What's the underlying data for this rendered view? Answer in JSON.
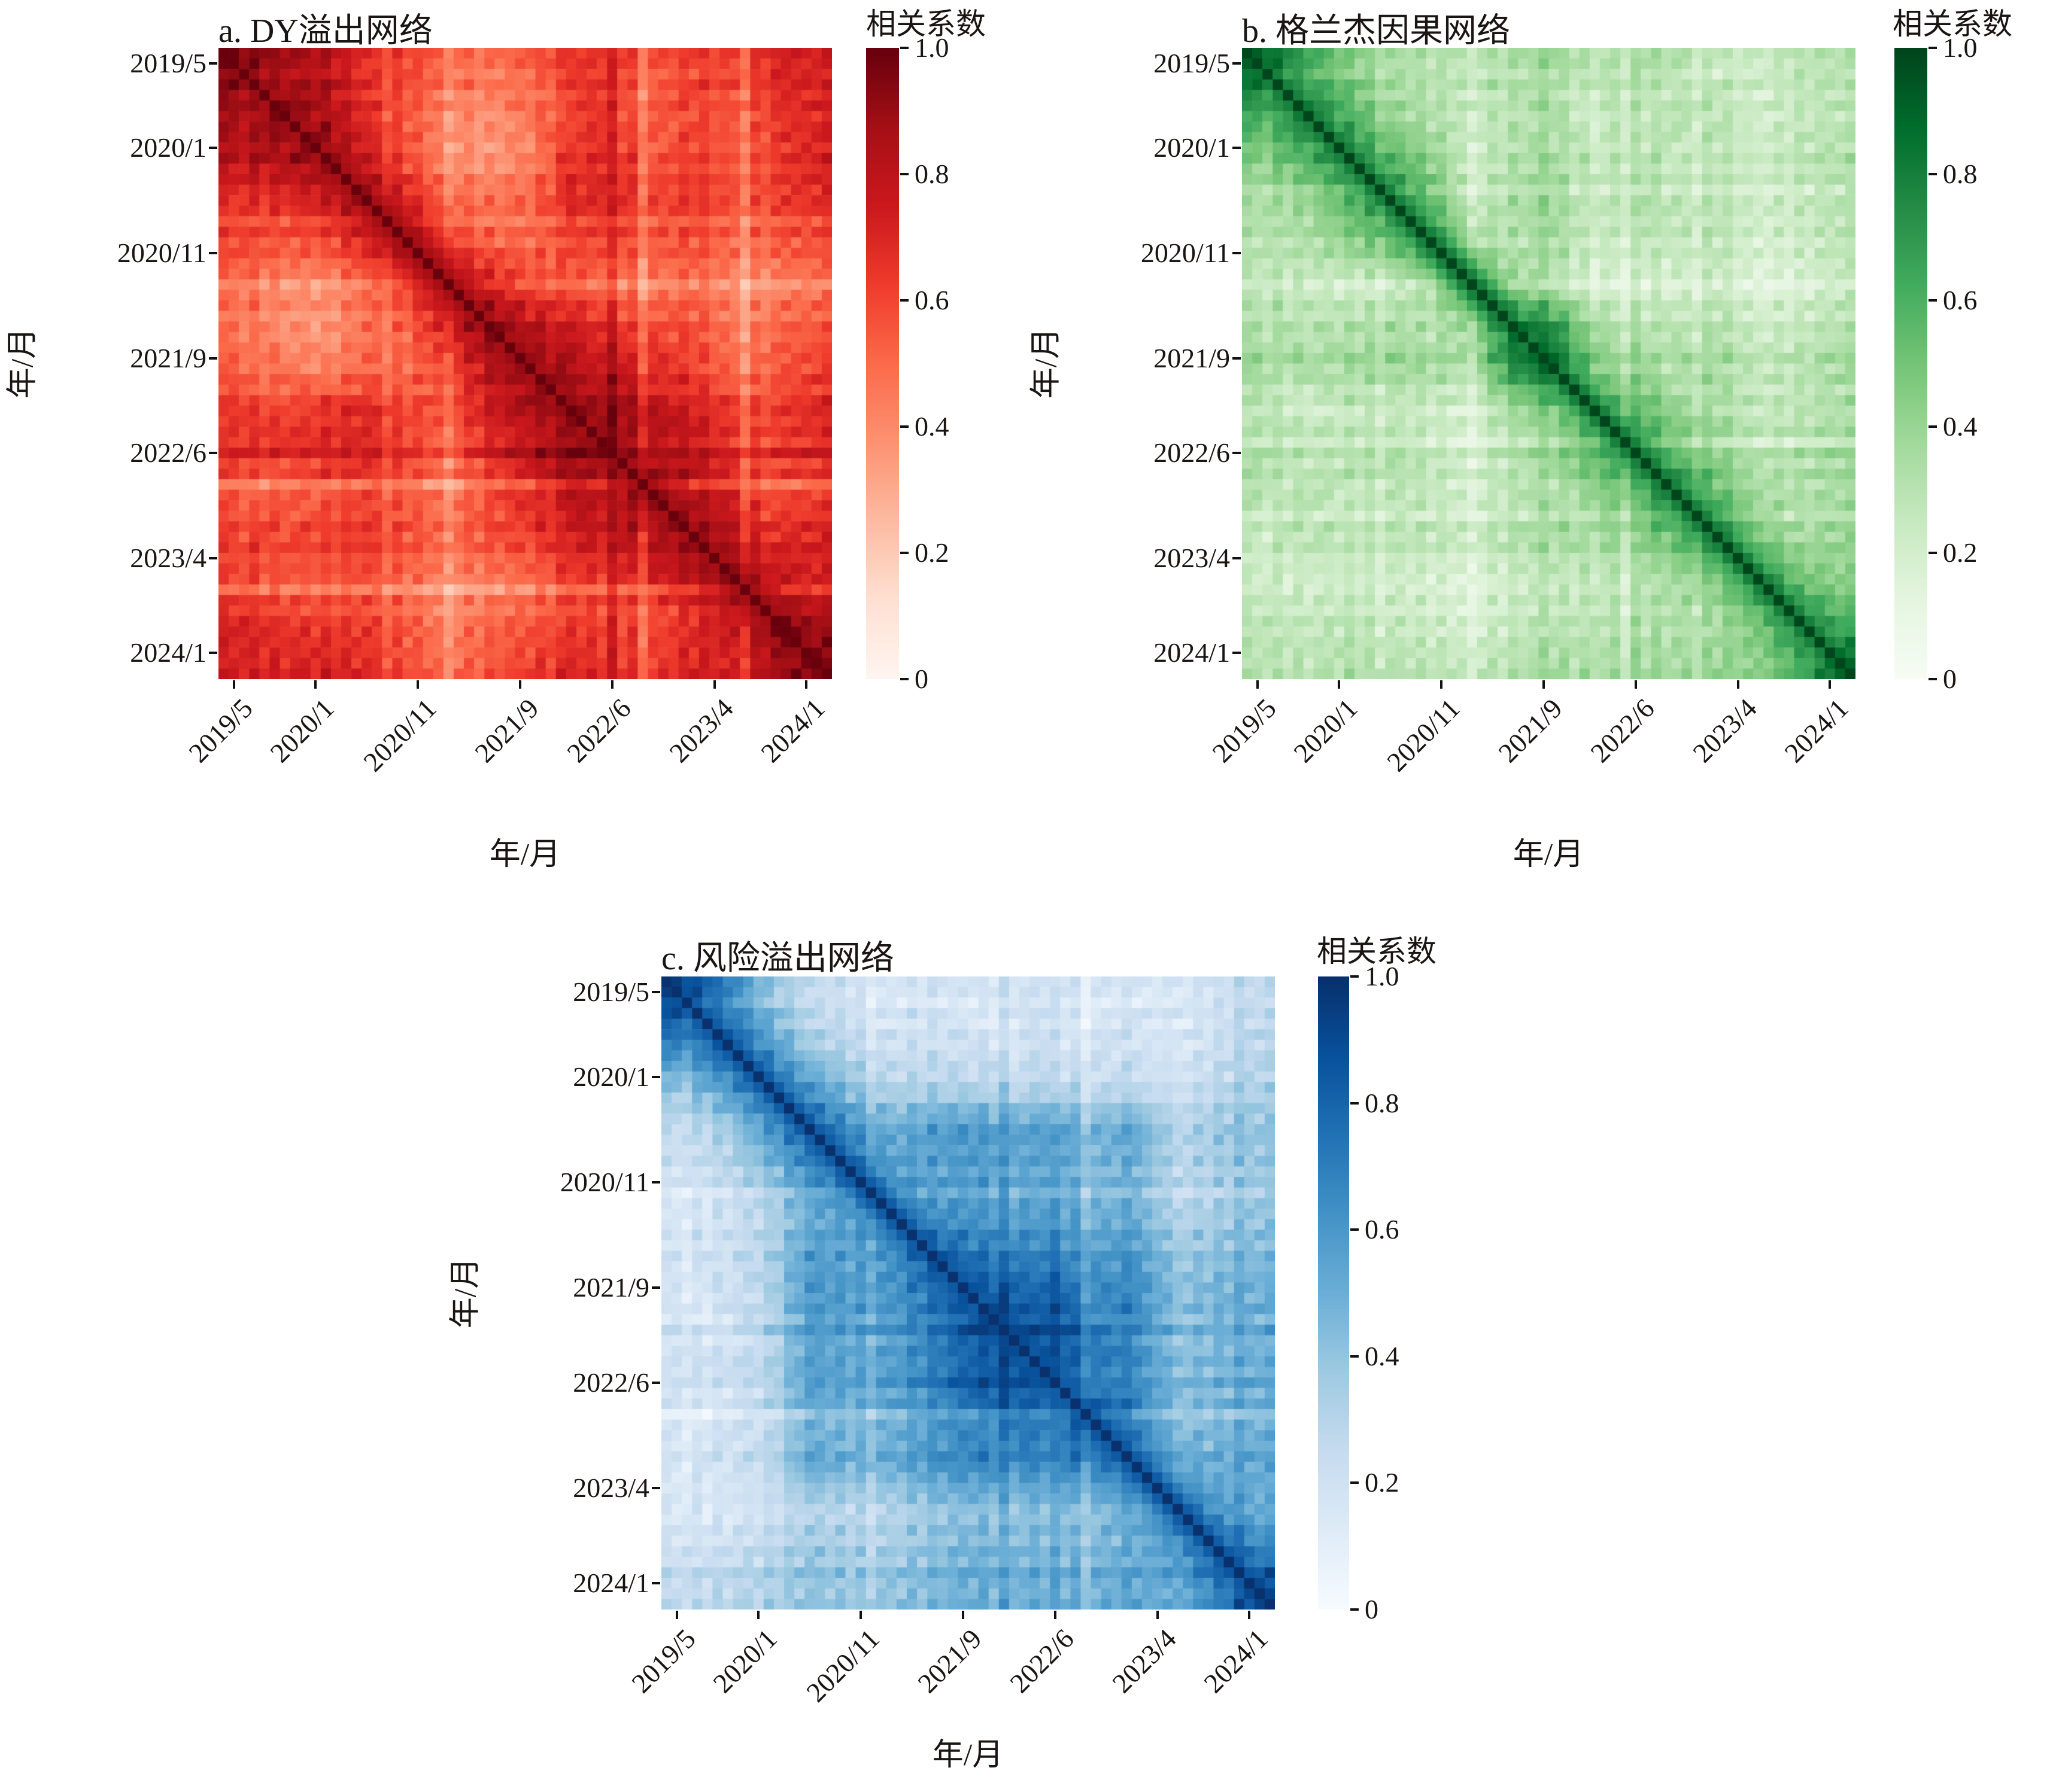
{
  "figure": {
    "background": "#ffffff",
    "text_color": "#1a1412",
    "colorbar_title": "相关系数",
    "colorbar_tick_labels": [
      "1.0",
      "0.8",
      "0.6",
      "0.4",
      "0.2",
      "0"
    ],
    "colorbar_tick_values": [
      1.0,
      0.8,
      0.6,
      0.4,
      0.2,
      0
    ],
    "axis_label_x": "年/月",
    "axis_label_y": "年/月",
    "tick_labels": [
      "2019/5",
      "2020/1",
      "2020/11",
      "2021/9",
      "2022/6",
      "2023/4",
      "2024/1"
    ],
    "tick_month_indices": [
      1,
      9,
      19,
      29,
      38,
      48,
      57
    ]
  },
  "chart_data": [
    {
      "type": "heatmap",
      "panel": "a",
      "title": "a. DY溢出网络",
      "colormap": "Reds",
      "value_range": [
        0,
        1
      ],
      "months_start": "2019/4",
      "months_count": 60,
      "grid": false,
      "legend_position": "right-colorbar",
      "colormap_stops": [
        "#fff5f0",
        "#fee0d2",
        "#fcbba1",
        "#fc9272",
        "#fb6a4a",
        "#ef3b2c",
        "#cb181d",
        "#a50f15",
        "#67000d"
      ],
      "diag_slope": 0.08,
      "coarse_month_centers": [
        2,
        6,
        10,
        14,
        18,
        22,
        26,
        30,
        34,
        38,
        42,
        46,
        50,
        54,
        58
      ],
      "matrix": [
        [
          0.92,
          0.86,
          0.82,
          0.66,
          0.6,
          0.5,
          0.46,
          0.52,
          0.6,
          0.63,
          0.55,
          0.62,
          0.6,
          0.68,
          0.72
        ],
        [
          0.86,
          0.92,
          0.85,
          0.68,
          0.55,
          0.42,
          0.38,
          0.46,
          0.6,
          0.65,
          0.52,
          0.6,
          0.55,
          0.62,
          0.7
        ],
        [
          0.82,
          0.85,
          0.92,
          0.76,
          0.58,
          0.4,
          0.35,
          0.42,
          0.65,
          0.68,
          0.55,
          0.62,
          0.55,
          0.6,
          0.72
        ],
        [
          0.66,
          0.68,
          0.76,
          0.9,
          0.72,
          0.52,
          0.48,
          0.52,
          0.68,
          0.7,
          0.6,
          0.65,
          0.58,
          0.6,
          0.68
        ],
        [
          0.6,
          0.55,
          0.58,
          0.72,
          0.88,
          0.62,
          0.52,
          0.5,
          0.58,
          0.62,
          0.55,
          0.58,
          0.5,
          0.52,
          0.58
        ],
        [
          0.5,
          0.42,
          0.4,
          0.52,
          0.62,
          0.9,
          0.75,
          0.6,
          0.55,
          0.5,
          0.45,
          0.5,
          0.42,
          0.4,
          0.48
        ],
        [
          0.46,
          0.38,
          0.35,
          0.48,
          0.52,
          0.75,
          0.92,
          0.82,
          0.72,
          0.68,
          0.58,
          0.58,
          0.45,
          0.48,
          0.55
        ],
        [
          0.52,
          0.46,
          0.42,
          0.52,
          0.5,
          0.6,
          0.82,
          0.92,
          0.82,
          0.78,
          0.68,
          0.62,
          0.5,
          0.52,
          0.62
        ],
        [
          0.6,
          0.6,
          0.65,
          0.68,
          0.58,
          0.55,
          0.72,
          0.82,
          0.93,
          0.88,
          0.78,
          0.72,
          0.62,
          0.58,
          0.68
        ],
        [
          0.63,
          0.65,
          0.68,
          0.7,
          0.62,
          0.5,
          0.68,
          0.78,
          0.88,
          0.93,
          0.82,
          0.78,
          0.65,
          0.6,
          0.68
        ],
        [
          0.55,
          0.52,
          0.55,
          0.6,
          0.55,
          0.45,
          0.58,
          0.68,
          0.78,
          0.82,
          0.9,
          0.82,
          0.72,
          0.55,
          0.62
        ],
        [
          0.62,
          0.6,
          0.62,
          0.65,
          0.58,
          0.5,
          0.58,
          0.62,
          0.72,
          0.78,
          0.82,
          0.92,
          0.82,
          0.65,
          0.72
        ],
        [
          0.6,
          0.55,
          0.55,
          0.58,
          0.5,
          0.42,
          0.45,
          0.5,
          0.62,
          0.65,
          0.72,
          0.82,
          0.92,
          0.75,
          0.72
        ],
        [
          0.68,
          0.62,
          0.6,
          0.6,
          0.52,
          0.4,
          0.48,
          0.52,
          0.58,
          0.6,
          0.55,
          0.65,
          0.75,
          0.92,
          0.85
        ],
        [
          0.72,
          0.7,
          0.72,
          0.68,
          0.58,
          0.48,
          0.55,
          0.62,
          0.68,
          0.68,
          0.62,
          0.72,
          0.72,
          0.85,
          0.95
        ]
      ],
      "streaks": [
        [
          16,
          -0.05
        ],
        [
          22,
          -0.09
        ],
        [
          34,
          0.04
        ],
        [
          38,
          0.06
        ],
        [
          41,
          -0.12
        ],
        [
          51,
          -0.12
        ],
        [
          55,
          0.05
        ]
      ]
    },
    {
      "type": "heatmap",
      "panel": "b",
      "title": "b. 格兰杰因果网络",
      "colormap": "Greens",
      "value_range": [
        0,
        1
      ],
      "months_start": "2019/4",
      "months_count": 60,
      "grid": false,
      "legend_position": "right-colorbar",
      "colormap_stops": [
        "#f7fcf5",
        "#e5f5e0",
        "#c7e9c0",
        "#a1d99b",
        "#74c476",
        "#41ab5d",
        "#238b45",
        "#006d2c",
        "#00441b"
      ],
      "diag_slope": 0.16,
      "coarse_month_centers": [
        2,
        6,
        10,
        14,
        18,
        22,
        26,
        30,
        34,
        38,
        42,
        46,
        50,
        54,
        58
      ],
      "matrix": [
        [
          0.85,
          0.62,
          0.45,
          0.35,
          0.3,
          0.28,
          0.32,
          0.35,
          0.25,
          0.32,
          0.3,
          0.25,
          0.22,
          0.28,
          0.3
        ],
        [
          0.62,
          0.82,
          0.6,
          0.4,
          0.32,
          0.25,
          0.3,
          0.32,
          0.22,
          0.3,
          0.28,
          0.3,
          0.2,
          0.25,
          0.28
        ],
        [
          0.45,
          0.6,
          0.8,
          0.58,
          0.42,
          0.22,
          0.32,
          0.35,
          0.25,
          0.32,
          0.25,
          0.28,
          0.22,
          0.28,
          0.32
        ],
        [
          0.35,
          0.4,
          0.58,
          0.78,
          0.55,
          0.25,
          0.35,
          0.38,
          0.25,
          0.35,
          0.28,
          0.3,
          0.22,
          0.25,
          0.3
        ],
        [
          0.3,
          0.32,
          0.42,
          0.55,
          0.75,
          0.35,
          0.3,
          0.35,
          0.22,
          0.28,
          0.25,
          0.28,
          0.18,
          0.22,
          0.28
        ],
        [
          0.28,
          0.25,
          0.22,
          0.25,
          0.35,
          0.7,
          0.4,
          0.3,
          0.18,
          0.22,
          0.2,
          0.25,
          0.15,
          0.18,
          0.25
        ],
        [
          0.32,
          0.3,
          0.32,
          0.35,
          0.3,
          0.4,
          0.85,
          0.72,
          0.35,
          0.32,
          0.28,
          0.32,
          0.22,
          0.25,
          0.3
        ],
        [
          0.35,
          0.32,
          0.35,
          0.38,
          0.35,
          0.3,
          0.72,
          0.88,
          0.45,
          0.38,
          0.32,
          0.35,
          0.25,
          0.28,
          0.35
        ],
        [
          0.25,
          0.22,
          0.25,
          0.25,
          0.22,
          0.18,
          0.35,
          0.45,
          0.8,
          0.55,
          0.38,
          0.35,
          0.25,
          0.28,
          0.32
        ],
        [
          0.32,
          0.3,
          0.32,
          0.35,
          0.28,
          0.22,
          0.32,
          0.38,
          0.55,
          0.82,
          0.55,
          0.42,
          0.3,
          0.32,
          0.38
        ],
        [
          0.3,
          0.28,
          0.25,
          0.28,
          0.25,
          0.2,
          0.28,
          0.32,
          0.38,
          0.55,
          0.8,
          0.55,
          0.35,
          0.32,
          0.35
        ],
        [
          0.25,
          0.3,
          0.28,
          0.3,
          0.28,
          0.25,
          0.32,
          0.35,
          0.35,
          0.42,
          0.55,
          0.8,
          0.48,
          0.35,
          0.4
        ],
        [
          0.22,
          0.2,
          0.22,
          0.22,
          0.18,
          0.15,
          0.22,
          0.25,
          0.25,
          0.3,
          0.35,
          0.48,
          0.78,
          0.5,
          0.42
        ],
        [
          0.28,
          0.25,
          0.28,
          0.25,
          0.22,
          0.18,
          0.25,
          0.28,
          0.28,
          0.32,
          0.32,
          0.35,
          0.5,
          0.82,
          0.6
        ],
        [
          0.3,
          0.28,
          0.32,
          0.3,
          0.28,
          0.25,
          0.3,
          0.35,
          0.32,
          0.38,
          0.35,
          0.4,
          0.42,
          0.6,
          0.9
        ]
      ],
      "streaks": [
        [
          13,
          -0.05
        ],
        [
          22,
          -0.06
        ],
        [
          29,
          0.05
        ],
        [
          37,
          -0.08
        ],
        [
          44,
          -0.05
        ]
      ]
    },
    {
      "type": "heatmap",
      "panel": "c",
      "title": "c. 风险溢出网络",
      "colormap": "Blues",
      "value_range": [
        0,
        1
      ],
      "months_start": "2019/4",
      "months_count": 60,
      "grid": false,
      "legend_position": "right-colorbar",
      "colormap_stops": [
        "#f7fbff",
        "#deebf7",
        "#c6dbef",
        "#9ecae1",
        "#6baed6",
        "#4292c6",
        "#2171b5",
        "#08519c",
        "#08306b"
      ],
      "diag_slope": 0.12,
      "coarse_month_centers": [
        2,
        6,
        10,
        14,
        18,
        22,
        26,
        30,
        34,
        38,
        42,
        46,
        50,
        54,
        58
      ],
      "matrix": [
        [
          0.88,
          0.68,
          0.4,
          0.25,
          0.2,
          0.15,
          0.18,
          0.15,
          0.15,
          0.18,
          0.15,
          0.18,
          0.15,
          0.2,
          0.25
        ],
        [
          0.68,
          0.85,
          0.6,
          0.35,
          0.28,
          0.2,
          0.22,
          0.2,
          0.18,
          0.22,
          0.18,
          0.22,
          0.15,
          0.22,
          0.28
        ],
        [
          0.4,
          0.6,
          0.82,
          0.6,
          0.42,
          0.3,
          0.32,
          0.3,
          0.28,
          0.3,
          0.25,
          0.28,
          0.2,
          0.28,
          0.32
        ],
        [
          0.25,
          0.35,
          0.6,
          0.85,
          0.65,
          0.5,
          0.58,
          0.6,
          0.55,
          0.58,
          0.48,
          0.55,
          0.3,
          0.38,
          0.4
        ],
        [
          0.2,
          0.28,
          0.42,
          0.65,
          0.8,
          0.58,
          0.55,
          0.58,
          0.52,
          0.55,
          0.45,
          0.5,
          0.28,
          0.35,
          0.38
        ],
        [
          0.15,
          0.2,
          0.3,
          0.5,
          0.58,
          0.78,
          0.62,
          0.6,
          0.55,
          0.58,
          0.48,
          0.52,
          0.3,
          0.35,
          0.4
        ],
        [
          0.18,
          0.22,
          0.32,
          0.58,
          0.55,
          0.62,
          0.85,
          0.75,
          0.68,
          0.7,
          0.58,
          0.62,
          0.38,
          0.42,
          0.45
        ],
        [
          0.15,
          0.2,
          0.3,
          0.6,
          0.58,
          0.6,
          0.75,
          0.9,
          0.82,
          0.84,
          0.65,
          0.68,
          0.42,
          0.48,
          0.5
        ],
        [
          0.15,
          0.18,
          0.28,
          0.55,
          0.52,
          0.55,
          0.68,
          0.82,
          0.92,
          0.86,
          0.68,
          0.65,
          0.4,
          0.45,
          0.48
        ],
        [
          0.18,
          0.22,
          0.3,
          0.58,
          0.55,
          0.58,
          0.7,
          0.84,
          0.86,
          0.9,
          0.72,
          0.68,
          0.45,
          0.48,
          0.52
        ],
        [
          0.15,
          0.18,
          0.25,
          0.48,
          0.45,
          0.48,
          0.58,
          0.65,
          0.68,
          0.72,
          0.85,
          0.7,
          0.42,
          0.45,
          0.48
        ],
        [
          0.18,
          0.22,
          0.28,
          0.55,
          0.5,
          0.52,
          0.62,
          0.68,
          0.65,
          0.68,
          0.7,
          0.85,
          0.55,
          0.52,
          0.55
        ],
        [
          0.15,
          0.15,
          0.2,
          0.3,
          0.28,
          0.3,
          0.38,
          0.42,
          0.4,
          0.45,
          0.42,
          0.55,
          0.8,
          0.58,
          0.5
        ],
        [
          0.2,
          0.22,
          0.28,
          0.38,
          0.35,
          0.35,
          0.42,
          0.48,
          0.45,
          0.48,
          0.45,
          0.52,
          0.58,
          0.85,
          0.68
        ],
        [
          0.25,
          0.28,
          0.32,
          0.4,
          0.38,
          0.4,
          0.45,
          0.5,
          0.48,
          0.52,
          0.48,
          0.55,
          0.5,
          0.68,
          0.92
        ]
      ],
      "streaks": [
        [
          20,
          -0.06
        ],
        [
          33,
          0.05
        ],
        [
          41,
          -0.07
        ],
        [
          47,
          -0.05
        ],
        [
          56,
          0.05
        ]
      ]
    }
  ]
}
